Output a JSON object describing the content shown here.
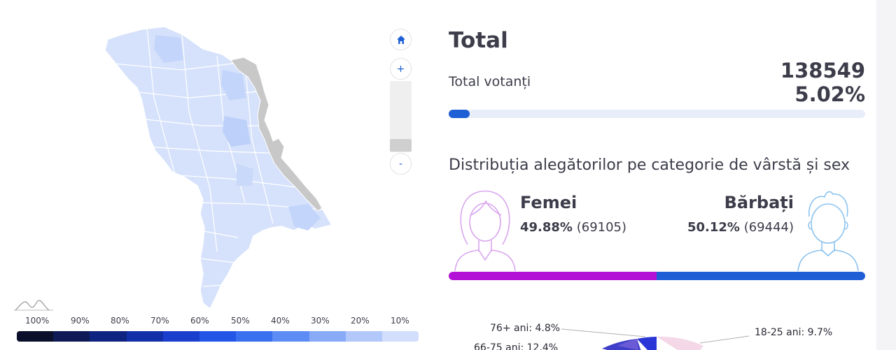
{
  "panel": {
    "title": "Total",
    "votanti_label": "Total votanți",
    "votanti_count": "138549",
    "votanti_percent_text": "5.02%",
    "votanti_percent": 5.02,
    "distribution_title": "Distribuția alegătorilor pe categorie de vârstă și sex"
  },
  "gender": {
    "female": {
      "label": "Femei",
      "percent_text": "49.88%",
      "count_text": "(69105)",
      "percent": 49.88,
      "color": "#b311d6"
    },
    "male": {
      "label": "Bărbați",
      "percent_text": "50.12%",
      "count_text": "(69444)",
      "percent": 50.12,
      "color": "#1f5fd6"
    }
  },
  "zoom": {
    "home_icon": "home-icon",
    "plus": "+",
    "minus": "-"
  },
  "legend": {
    "labels": [
      "100%",
      "90%",
      "80%",
      "70%",
      "60%",
      "50%",
      "40%",
      "30%",
      "20%",
      "10%"
    ],
    "colors": [
      "#0a0f2c",
      "#0d1a55",
      "#0f2480",
      "#1230a8",
      "#1a3fcc",
      "#2356e6",
      "#3a6ff0",
      "#5d8cf4",
      "#88aaf7",
      "#b3c8fa",
      "#d2defb"
    ]
  },
  "age_chart": {
    "labels": [
      {
        "text": "76+ ani: 4.8%"
      },
      {
        "text": "66-75 ani: 12.4%"
      },
      {
        "text": "18-25 ani: 9.7%"
      }
    ]
  },
  "colors": {
    "accent": "#1f5fd6",
    "region_fill": "#d6e2fb",
    "transnistria": "#c8c8c8"
  }
}
